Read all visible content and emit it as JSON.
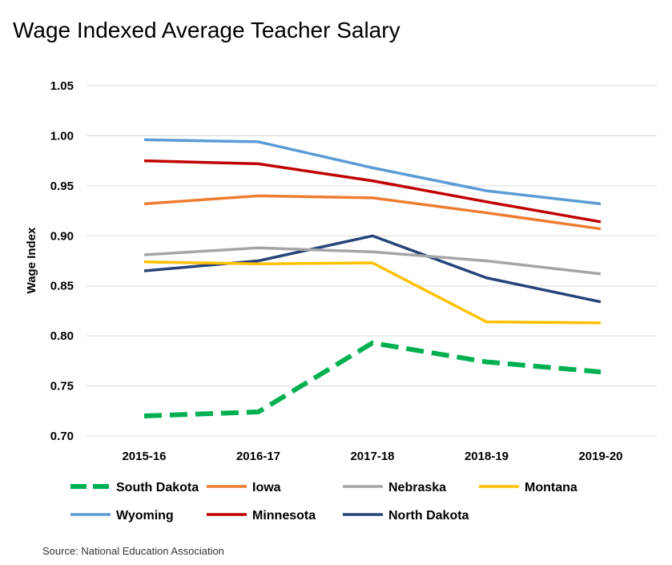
{
  "chart_data": {
    "type": "line",
    "title": "Wage Indexed Average Teacher Salary",
    "ylabel": "Wage Index",
    "xlabel": "",
    "ylim": [
      0.7,
      1.05
    ],
    "yticks": [
      "0.70",
      "0.75",
      "0.80",
      "0.85",
      "0.90",
      "0.95",
      "1.00",
      "1.05"
    ],
    "categories": [
      "2015-16",
      "2016-17",
      "2017-18",
      "2018-19",
      "2019-20"
    ],
    "grid": "horizontal",
    "legend_position": "bottom",
    "series": [
      {
        "name": "South Dakota",
        "color": "#00b050",
        "dashed": true,
        "values": [
          0.72,
          0.724,
          0.793,
          0.774,
          0.764
        ]
      },
      {
        "name": "Iowa",
        "color": "#ed7d31",
        "dashed": false,
        "values": [
          0.932,
          0.94,
          0.938,
          0.923,
          0.907
        ]
      },
      {
        "name": "Nebraska",
        "color": "#a5a5a5",
        "dashed": false,
        "values": [
          0.881,
          0.888,
          0.884,
          0.875,
          0.862
        ]
      },
      {
        "name": "Montana",
        "color": "#ffc000",
        "dashed": false,
        "values": [
          0.874,
          0.872,
          0.873,
          0.814,
          0.813
        ]
      },
      {
        "name": "Wyoming",
        "color": "#5b9bd5",
        "dashed": false,
        "values": [
          0.996,
          0.994,
          0.968,
          0.945,
          0.932
        ]
      },
      {
        "name": "Minnesota",
        "color": "#c00000",
        "dashed": false,
        "values": [
          0.975,
          0.972,
          0.955,
          0.934,
          0.914
        ]
      },
      {
        "name": "North Dakota",
        "color": "#264478",
        "dashed": false,
        "values": [
          0.865,
          0.875,
          0.9,
          0.858,
          0.834
        ]
      }
    ]
  },
  "source": "Source:  National Education Association"
}
